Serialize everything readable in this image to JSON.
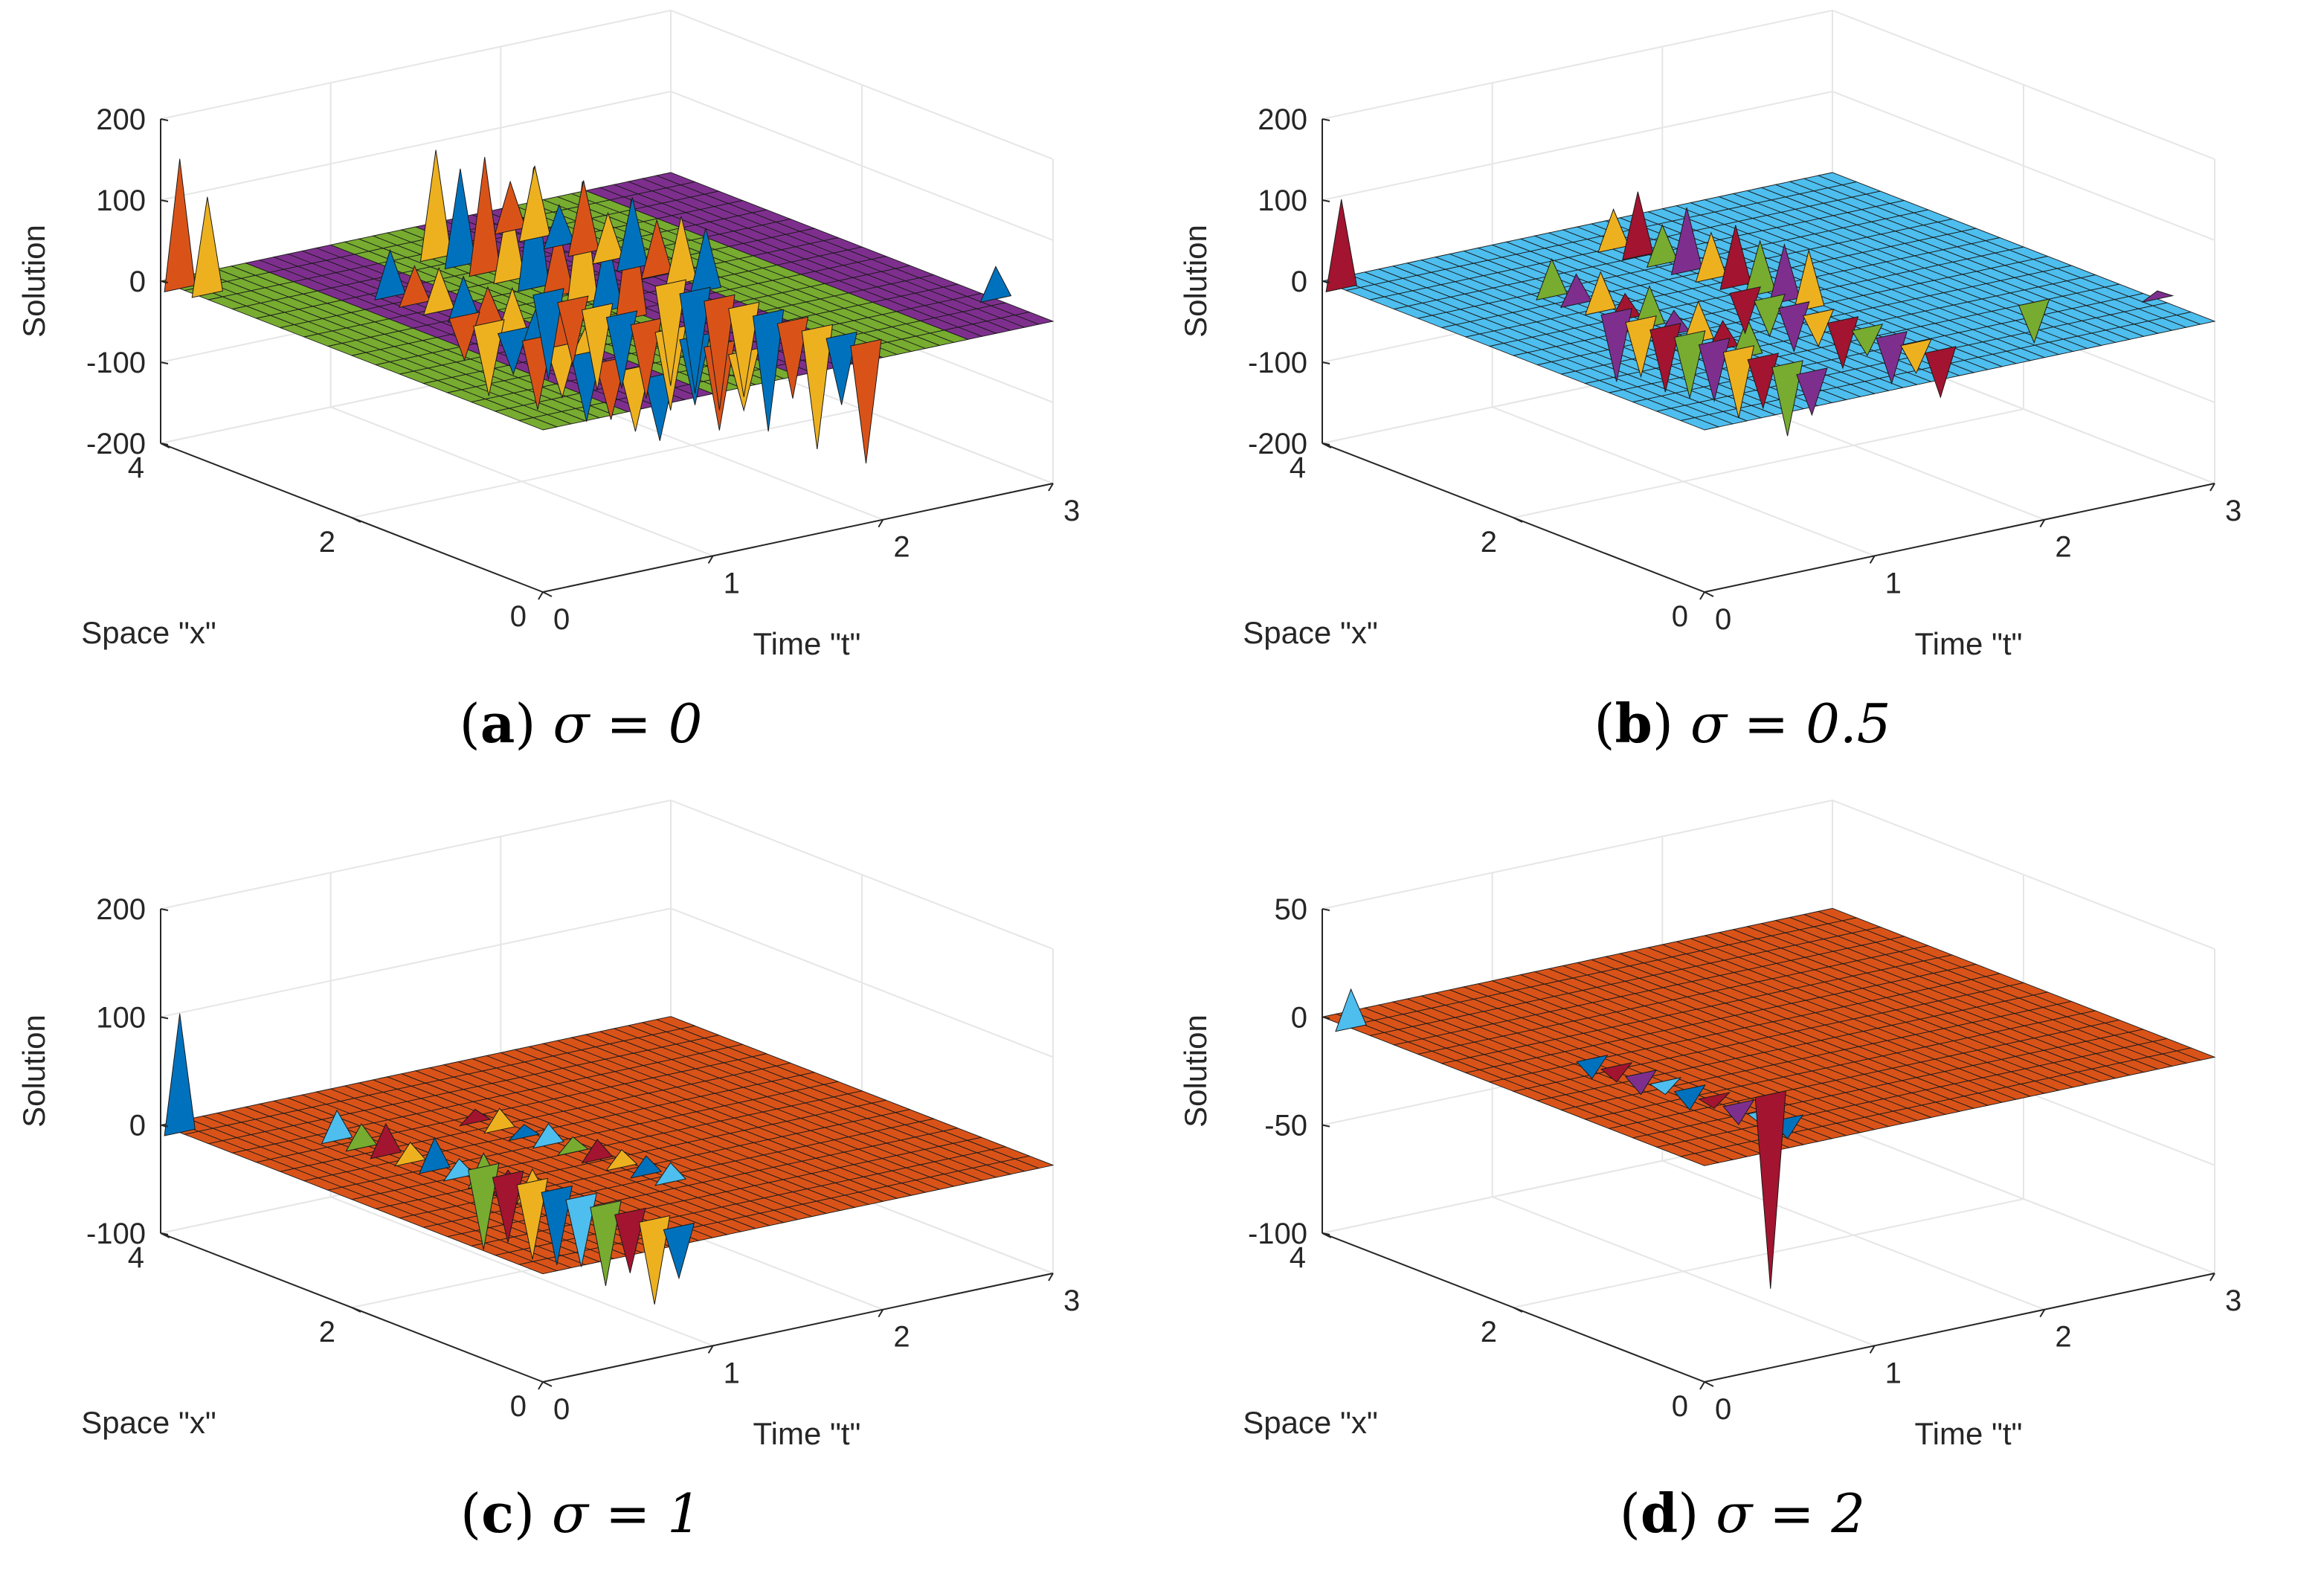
{
  "chart_data": [
    {
      "type": "surface",
      "panel_label": "a",
      "caption_suffix": "σ = 0",
      "xlabel": "Space \"x\"",
      "ylabel": "Time \"t\"",
      "zlabel": "Solution",
      "x_range": [
        0,
        4
      ],
      "t_range": [
        0,
        3
      ],
      "zlim": [
        -200,
        200
      ],
      "x_ticks": [
        "0",
        "2",
        "4"
      ],
      "t_ticks": [
        "0",
        "1",
        "2",
        "3"
      ],
      "z_ticks": [
        "-200",
        "-100",
        "0",
        "100",
        "200"
      ],
      "base_colors": [
        "#77AC30",
        "#7E2F8E"
      ],
      "stripe_pattern": "alternating",
      "spike_colors": [
        "#D95319",
        "#EDB120",
        "#0072BD"
      ],
      "spikes": [
        {
          "t": 0.0,
          "x": 3.8,
          "z": 160
        },
        {
          "t": 0.05,
          "x": 3.6,
          "z": 120
        },
        {
          "t": 0.8,
          "x": 2.0,
          "z": 60,
          "ridge": true
        },
        {
          "t": 0.9,
          "x": 1.4,
          "z": -90,
          "ridge": true
        },
        {
          "t": 1.35,
          "x": 2.5,
          "z": 150,
          "ridge": true
        },
        {
          "t": 1.45,
          "x": 1.5,
          "z": -110,
          "ridge": true
        },
        {
          "t": 1.9,
          "x": 2.7,
          "z": 90,
          "ridge": true
        },
        {
          "t": 2.0,
          "x": 1.2,
          "z": -150,
          "ridge": true
        },
        {
          "t": 3.0,
          "x": 0.6,
          "z": 40
        }
      ]
    },
    {
      "type": "surface",
      "panel_label": "b",
      "caption_suffix": "σ = 0.5",
      "xlabel": "Space \"x\"",
      "ylabel": "Time \"t\"",
      "zlabel": "Solution",
      "x_range": [
        0,
        4
      ],
      "t_range": [
        0,
        3
      ],
      "zlim": [
        -200,
        200
      ],
      "x_ticks": [
        "0",
        "2",
        "4"
      ],
      "t_ticks": [
        "0",
        "1",
        "2",
        "3"
      ],
      "z_ticks": [
        "-200",
        "-100",
        "0",
        "100",
        "200"
      ],
      "base_colors": [
        "#4DBEEE",
        "#4DBEEE"
      ],
      "stripe_pattern": "uniform",
      "spike_colors": [
        "#A2142F",
        "#77AC30",
        "#7E2F8E",
        "#EDB120"
      ],
      "spikes": [
        {
          "t": 0.0,
          "x": 3.8,
          "z": 110
        },
        {
          "t": 0.8,
          "x": 2.0,
          "z": 50,
          "ridge": true
        },
        {
          "t": 0.9,
          "x": 1.5,
          "z": -90,
          "ridge": true
        },
        {
          "t": 1.5,
          "x": 2.6,
          "z": 80,
          "ridge": true
        },
        {
          "t": 1.6,
          "x": 1.4,
          "z": -60,
          "ridge": true
        },
        {
          "t": 2.5,
          "x": 1.0,
          "z": -50
        },
        {
          "t": 3.0,
          "x": 0.6,
          "z": 10
        }
      ]
    },
    {
      "type": "surface",
      "panel_label": "c",
      "caption_suffix": "σ = 1",
      "xlabel": "Space \"x\"",
      "ylabel": "Time \"t\"",
      "zlabel": "Solution",
      "x_range": [
        0,
        4
      ],
      "t_range": [
        0,
        3
      ],
      "zlim": [
        -100,
        200
      ],
      "x_ticks": [
        "0",
        "2",
        "4"
      ],
      "t_ticks": [
        "0",
        "1",
        "2",
        "3"
      ],
      "z_ticks": [
        "-100",
        "0",
        "100",
        "200"
      ],
      "base_colors": [
        "#D95319",
        "#D95319"
      ],
      "stripe_pattern": "uniform",
      "spike_colors": [
        "#0072BD",
        "#4DBEEE",
        "#77AC30",
        "#A2142F",
        "#EDB120"
      ],
      "spikes": [
        {
          "t": 0.0,
          "x": 3.8,
          "z": 110
        },
        {
          "t": 0.6,
          "x": 2.2,
          "z": 30,
          "ridge": true
        },
        {
          "t": 0.9,
          "x": 1.2,
          "z": -80,
          "ridge": true
        },
        {
          "t": 1.3,
          "x": 2.0,
          "z": 20,
          "ridge": true
        }
      ]
    },
    {
      "type": "surface",
      "panel_label": "d",
      "caption_suffix": "σ = 2",
      "xlabel": "Space \"x\"",
      "ylabel": "Time \"t\"",
      "zlabel": "Solution",
      "x_range": [
        0,
        4
      ],
      "t_range": [
        0,
        3
      ],
      "zlim": [
        -100,
        50
      ],
      "x_ticks": [
        "0",
        "2",
        "4"
      ],
      "t_ticks": [
        "0",
        "1",
        "2",
        "3"
      ],
      "z_ticks": [
        "-100",
        "-50",
        "0",
        "50"
      ],
      "base_colors": [
        "#D95319",
        "#D95319"
      ],
      "stripe_pattern": "uniform",
      "spike_colors": [
        "#4DBEEE",
        "#0072BD",
        "#A2142F",
        "#7E2F8E"
      ],
      "spikes": [
        {
          "t": 0.0,
          "x": 3.7,
          "z": 18
        },
        {
          "t": 0.7,
          "x": 1.4,
          "z": -10,
          "ridge": true
        },
        {
          "t": 0.95,
          "x": 1.0,
          "z": -90
        }
      ]
    }
  ]
}
